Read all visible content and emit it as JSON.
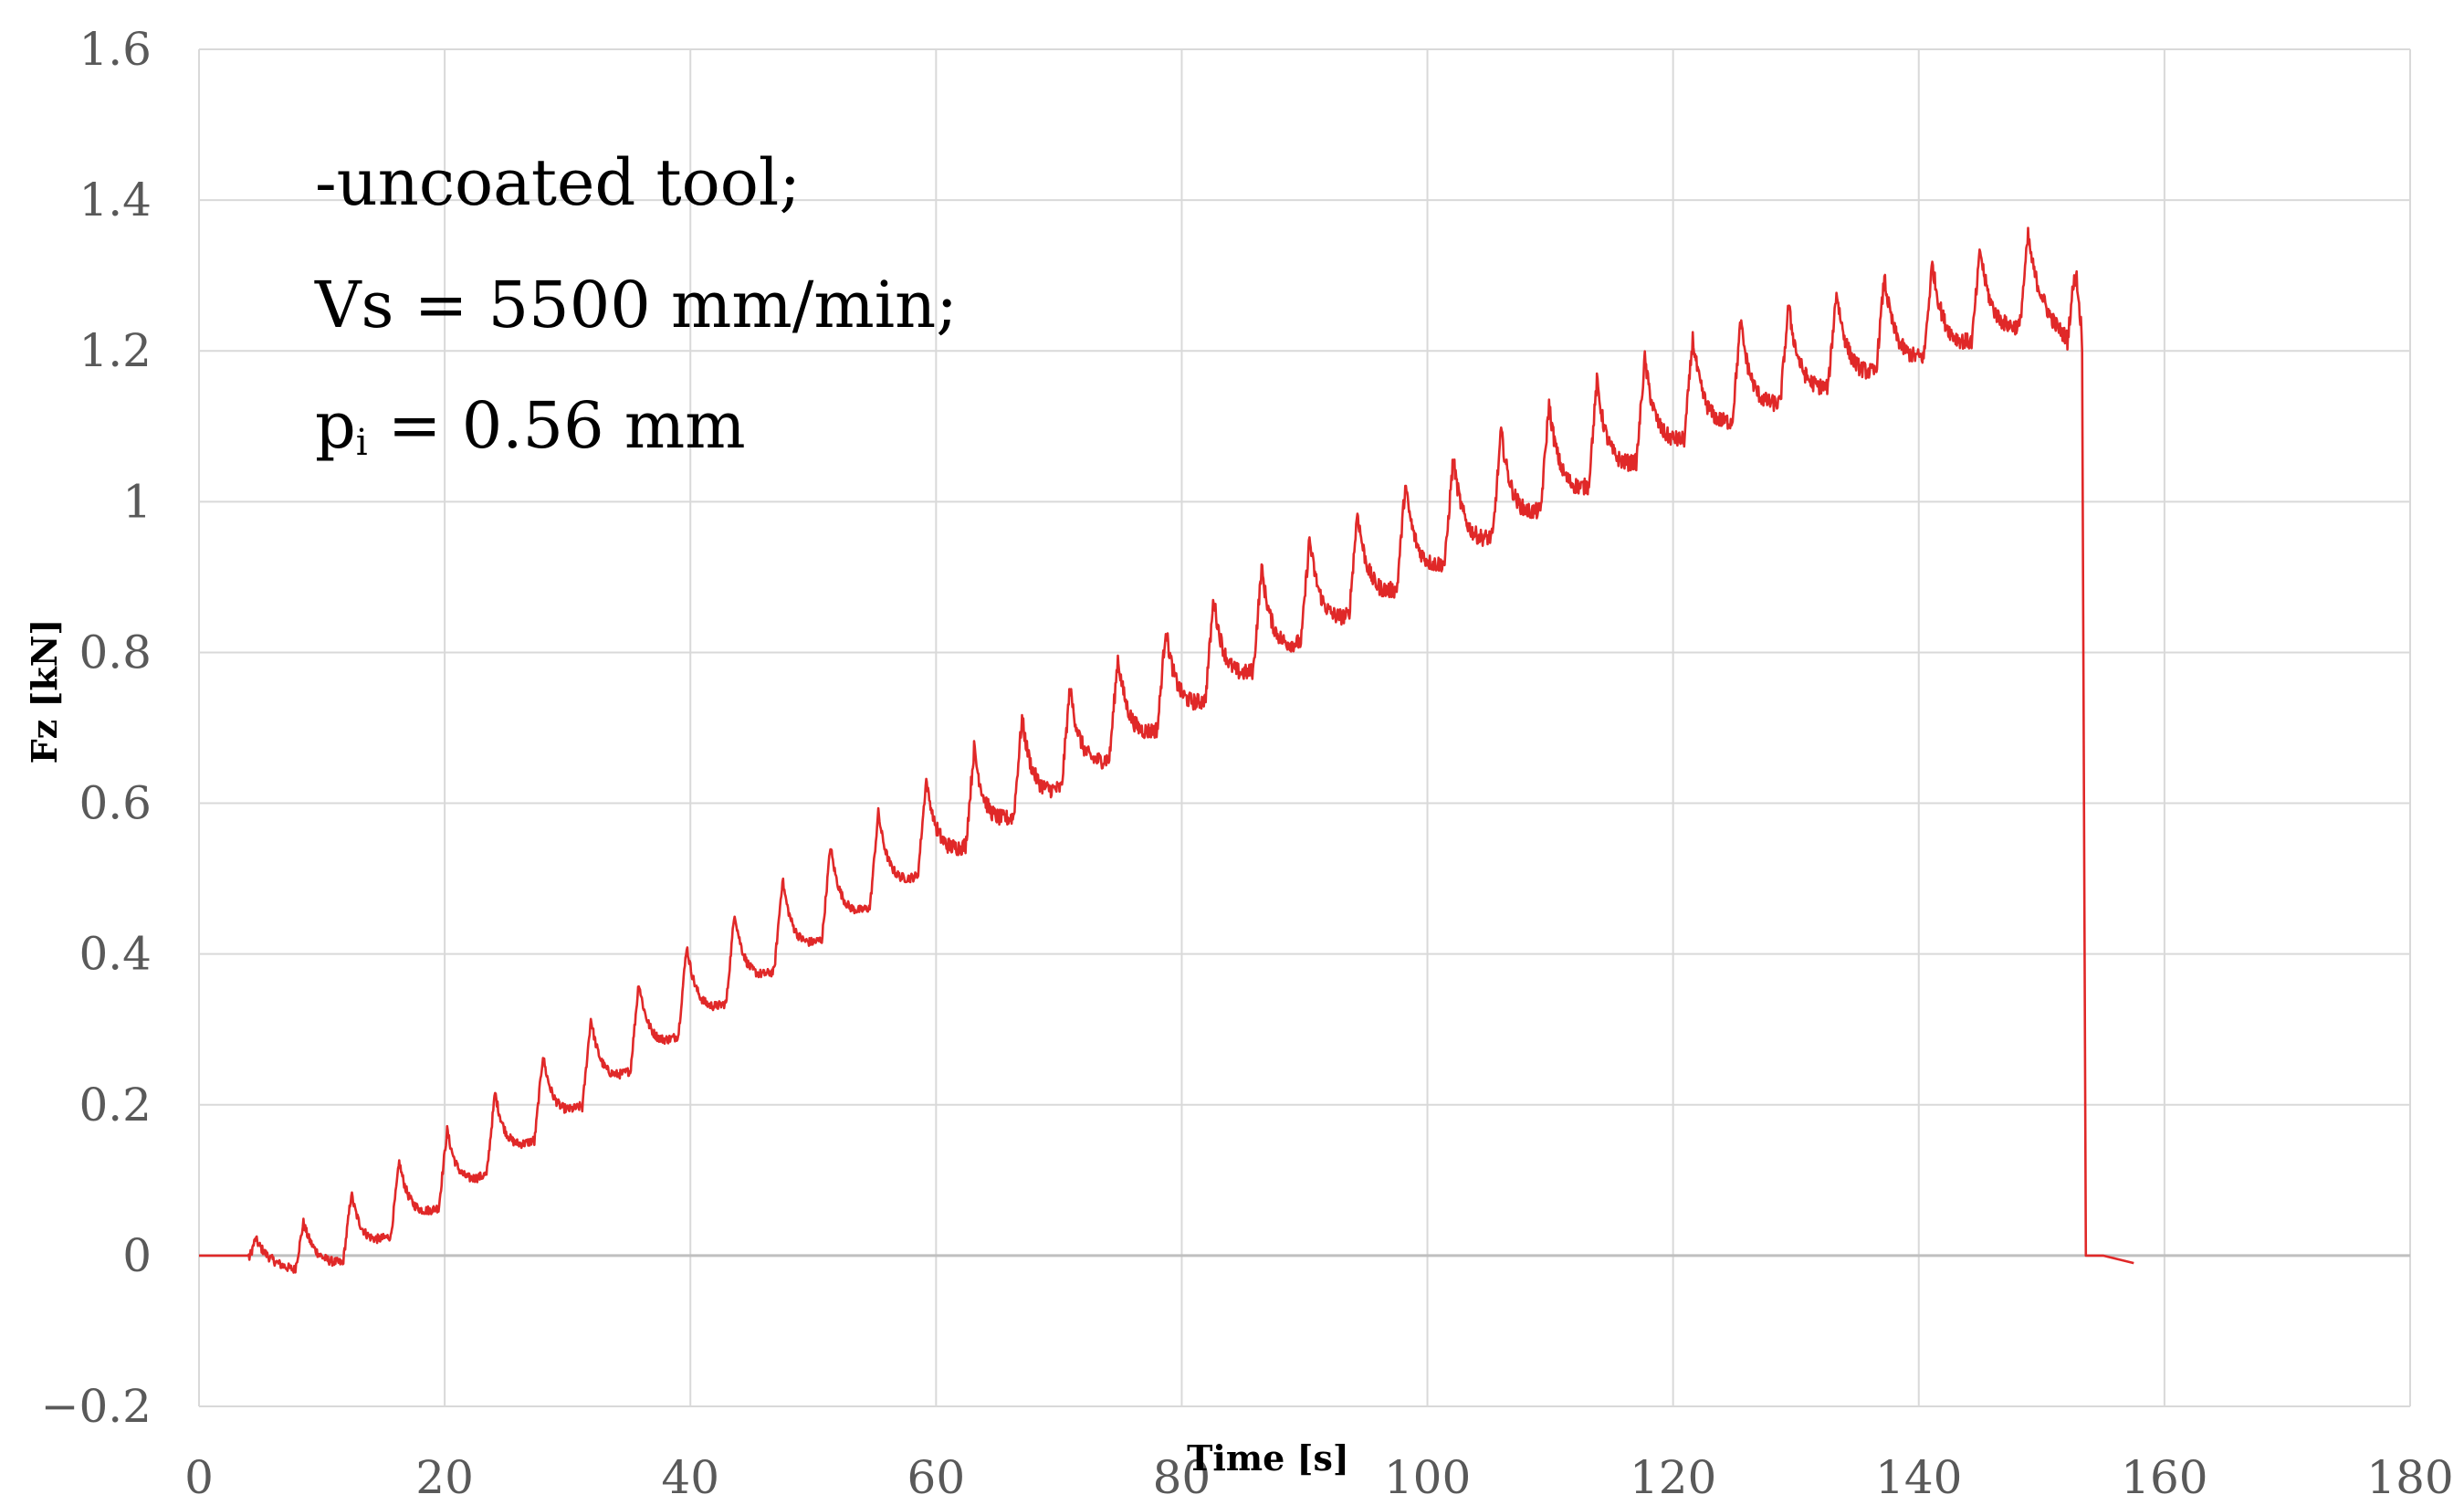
{
  "chart_data": {
    "type": "line",
    "title": "",
    "xlabel": "Time [s]",
    "ylabel": "Fz [kN]",
    "xlim": [
      0,
      180
    ],
    "ylim": [
      -0.2,
      1.6
    ],
    "grid": true,
    "x_ticks": [
      "0",
      "20",
      "40",
      "60",
      "80",
      "100",
      "120",
      "140",
      "160",
      "180"
    ],
    "y_ticks": [
      "−0.2",
      "0",
      "0.2",
      "0.4",
      "0.6",
      "0.8",
      "1",
      "1.2",
      "1.4",
      "1.6"
    ],
    "annotations": {
      "line1": "-uncoated tool;",
      "line2": "Vs = 5500 mm/min;",
      "line3_main": "p",
      "line3_sub": "i",
      "line3_rest": " = 0.56 mm"
    },
    "series": [
      {
        "name": "Fz",
        "color": "#e02828",
        "pulse_period_s": 3.9,
        "drop_time_s": 153.3,
        "end_time_s": 157.5,
        "trend": [
          {
            "t": 0,
            "fz": 0.0
          },
          {
            "t": 4,
            "fz": 0.0
          },
          {
            "t": 8,
            "fz": 0.0
          },
          {
            "t": 12,
            "fz": 0.02
          },
          {
            "t": 16,
            "fz": 0.06
          },
          {
            "t": 20,
            "fz": 0.1
          },
          {
            "t": 30,
            "fz": 0.22
          },
          {
            "t": 40,
            "fz": 0.34
          },
          {
            "t": 50,
            "fz": 0.45
          },
          {
            "t": 60,
            "fz": 0.56
          },
          {
            "t": 70,
            "fz": 0.66
          },
          {
            "t": 80,
            "fz": 0.76
          },
          {
            "t": 90,
            "fz": 0.86
          },
          {
            "t": 100,
            "fz": 0.95
          },
          {
            "t": 110,
            "fz": 1.04
          },
          {
            "t": 120,
            "fz": 1.12
          },
          {
            "t": 130,
            "fz": 1.18
          },
          {
            "t": 140,
            "fz": 1.23
          },
          {
            "t": 150,
            "fz": 1.28
          },
          {
            "t": 152.5,
            "fz": 1.25
          },
          {
            "t": 153.2,
            "fz": 1.2
          }
        ],
        "pulse_amplitude": [
          {
            "t": 0,
            "amp": 0.0
          },
          {
            "t": 4,
            "amp": 0.03
          },
          {
            "t": 12,
            "amp": 0.09
          },
          {
            "t": 30,
            "amp": 0.11
          },
          {
            "t": 70,
            "amp": 0.13
          },
          {
            "t": 110,
            "amp": 0.14
          },
          {
            "t": 150,
            "amp": 0.12
          }
        ],
        "tail": [
          {
            "t": 153.3,
            "fz": 1.2
          },
          {
            "t": 153.6,
            "fz": 0.0
          },
          {
            "t": 155,
            "fz": 0.0
          },
          {
            "t": 157.5,
            "fz": -0.01
          }
        ]
      }
    ]
  }
}
